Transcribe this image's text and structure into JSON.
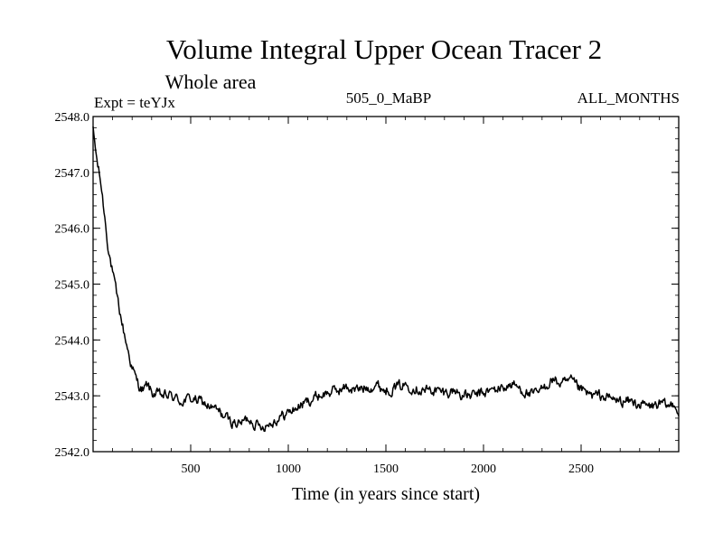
{
  "chart_data": {
    "type": "line",
    "title": "Volume Integral Upper Ocean Tracer 2",
    "subtitle": "Whole area",
    "annotations": {
      "left": "Expt = teYJx",
      "center": "505_0_MaBP",
      "right": "ALL_MONTHS"
    },
    "xlabel": "Time (in years since start)",
    "ylabel": "",
    "xlim": [
      0,
      3000
    ],
    "ylim": [
      2542.0,
      2548.0
    ],
    "xticks": [
      500,
      1000,
      1500,
      2000,
      2500
    ],
    "xtick_labels": [
      "500",
      "1000",
      "1500",
      "2000",
      "2500"
    ],
    "yticks": [
      2542.0,
      2543.0,
      2544.0,
      2545.0,
      2546.0,
      2547.0,
      2548.0
    ],
    "ytick_labels": [
      "2542.0",
      "2543.0",
      "2544.0",
      "2545.0",
      "2546.0",
      "2547.0",
      "2548.0"
    ],
    "grid": false,
    "series": [
      {
        "name": "Volume Integral Upper Ocean Tracer 2",
        "color": "#000000",
        "x": [
          0,
          20,
          40,
          60,
          80,
          100,
          120,
          140,
          160,
          180,
          200,
          220,
          240,
          260,
          280,
          300,
          350,
          400,
          450,
          500,
          550,
          600,
          650,
          700,
          750,
          800,
          850,
          900,
          950,
          1000,
          1050,
          1100,
          1150,
          1200,
          1250,
          1300,
          1350,
          1400,
          1450,
          1500,
          1550,
          1600,
          1650,
          1700,
          1750,
          1800,
          1850,
          1900,
          1950,
          2000,
          2050,
          2100,
          2150,
          2200,
          2250,
          2300,
          2350,
          2400,
          2450,
          2500,
          2550,
          2600,
          2650,
          2700,
          2750,
          2800,
          2850,
          2900,
          2950,
          2980,
          3000
        ],
        "values": [
          2547.75,
          2547.2,
          2546.8,
          2546.2,
          2545.6,
          2545.2,
          2544.8,
          2544.45,
          2544.1,
          2543.8,
          2543.5,
          2543.3,
          2543.15,
          2543.1,
          2543.2,
          2543.05,
          2543.0,
          2543.0,
          2542.9,
          2542.95,
          2542.9,
          2542.8,
          2542.7,
          2542.55,
          2542.5,
          2542.6,
          2542.45,
          2542.5,
          2542.6,
          2542.7,
          2542.8,
          2542.9,
          2543.0,
          2543.05,
          2543.1,
          2543.15,
          2543.1,
          2543.15,
          2543.2,
          2543.1,
          2543.15,
          2543.2,
          2543.15,
          2543.1,
          2543.1,
          2543.05,
          2543.1,
          2543.0,
          2543.0,
          2543.05,
          2543.1,
          2543.15,
          2543.2,
          2543.1,
          2543.0,
          2543.1,
          2543.3,
          2543.2,
          2543.25,
          2543.1,
          2543.0,
          2543.0,
          2542.95,
          2542.9,
          2542.9,
          2542.85,
          2542.8,
          2542.85,
          2542.8,
          2542.9,
          2542.65
        ]
      }
    ]
  }
}
